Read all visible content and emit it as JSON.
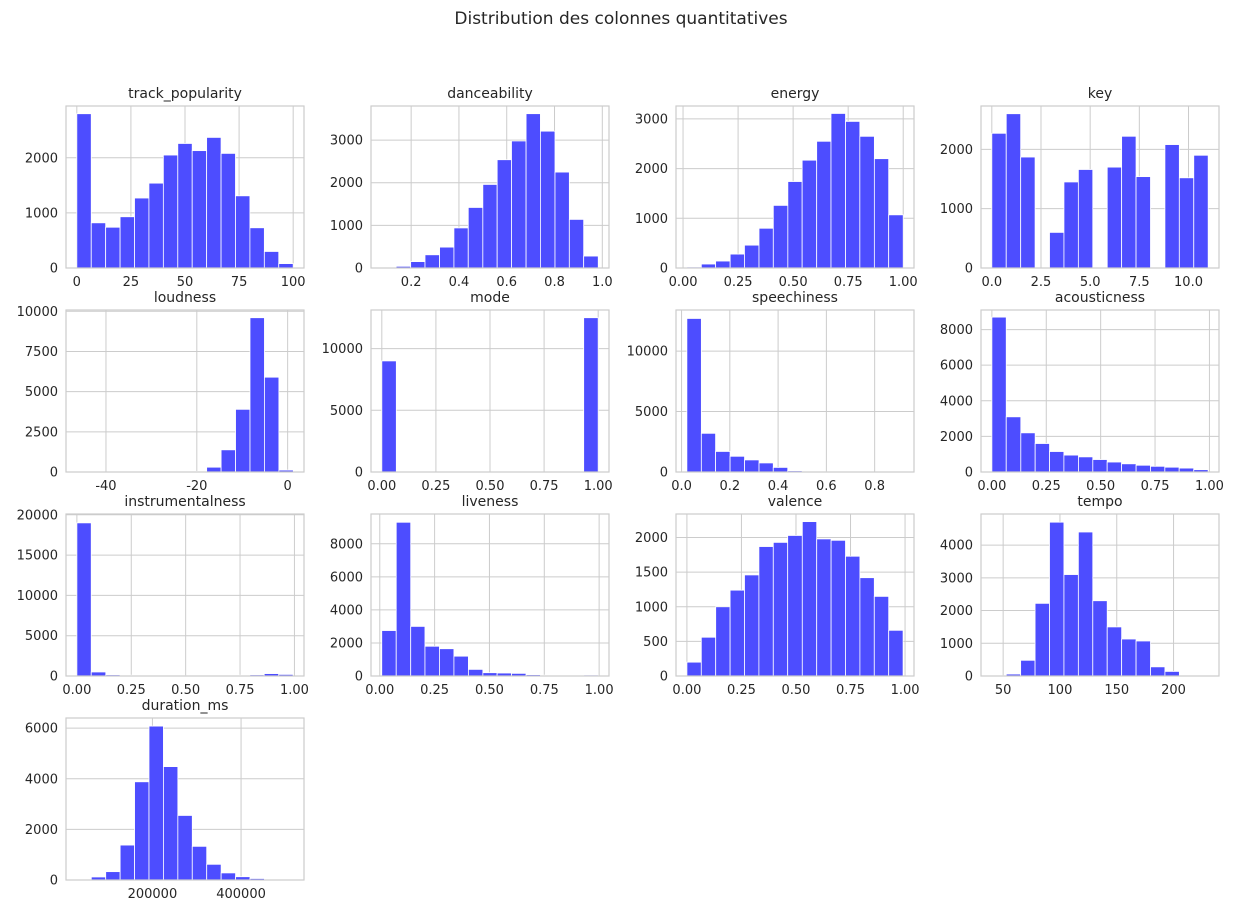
{
  "title": "Distribution des colonnes quantitatives",
  "chart_data": [
    {
      "type": "histogram",
      "title": "track_popularity",
      "color": "#4d4dff",
      "grid": true,
      "bins": [
        0,
        6.67,
        13.33,
        20,
        26.67,
        33.33,
        40,
        46.67,
        53.33,
        60,
        66.67,
        73.33,
        80,
        86.67,
        93.33,
        100
      ],
      "values": [
        2800,
        820,
        740,
        930,
        1270,
        1540,
        2050,
        2260,
        2130,
        2370,
        2080,
        1310,
        730,
        300,
        80
      ],
      "xlim": [
        -5,
        105
      ],
      "xticks": [
        0,
        25,
        50,
        75,
        100
      ],
      "ylim": [
        0,
        2940
      ],
      "yticks": [
        0,
        1000,
        2000
      ]
    },
    {
      "type": "histogram",
      "title": "danceability",
      "color": "#4d4dff",
      "grid": true,
      "bins": [
        0.077,
        0.137,
        0.198,
        0.258,
        0.319,
        0.379,
        0.439,
        0.5,
        0.56,
        0.62,
        0.681,
        0.741,
        0.802,
        0.862,
        0.922,
        0.983
      ],
      "values": [
        10,
        40,
        150,
        310,
        490,
        940,
        1420,
        1960,
        2540,
        2980,
        3620,
        3210,
        2250,
        1140,
        280
      ],
      "xlim": [
        0.032,
        1.028
      ],
      "xticks": [
        0.2,
        0.4,
        0.6,
        0.8,
        {
          "value": 1,
          "label": "1.0"
        }
      ],
      "ylim": [
        0,
        3800
      ],
      "yticks": [
        0,
        1000,
        2000,
        3000
      ]
    },
    {
      "type": "histogram",
      "title": "energy",
      "color": "#4d4dff",
      "grid": true,
      "bins": [
        0.017,
        0.083,
        0.148,
        0.214,
        0.279,
        0.345,
        0.41,
        0.476,
        0.541,
        0.607,
        0.672,
        0.738,
        0.803,
        0.869,
        0.934,
        1.0
      ],
      "values": [
        20,
        80,
        140,
        280,
        460,
        800,
        1260,
        1740,
        2170,
        2550,
        3110,
        2950,
        2650,
        2200,
        1070
      ],
      "xlim": [
        -0.032,
        1.049
      ],
      "xticks": [
        {
          "value": 0,
          "label": "0.00"
        },
        0.25,
        {
          "value": 0.5,
          "label": "0.50"
        },
        0.75,
        {
          "value": 1,
          "label": "1.00"
        }
      ],
      "ylim": [
        0,
        3260
      ],
      "yticks": [
        0,
        1000,
        2000,
        3000
      ]
    },
    {
      "type": "histogram",
      "title": "key",
      "color": "#4d4dff",
      "grid": true,
      "bins": [
        0,
        0.733,
        1.467,
        2.2,
        2.933,
        3.667,
        4.4,
        5.133,
        5.867,
        6.6,
        7.333,
        8.067,
        8.8,
        9.533,
        10.267,
        11
      ],
      "values": [
        2270,
        2600,
        1870,
        0,
        600,
        1450,
        1660,
        0,
        1700,
        2220,
        1540,
        0,
        2080,
        1520,
        1900
      ],
      "xlim": [
        -0.55,
        11.55
      ],
      "xticks": [
        {
          "value": 0,
          "label": "0.0"
        },
        2.5,
        {
          "value": 5,
          "label": "5.0"
        },
        7.5,
        {
          "value": 10,
          "label": "10.0"
        }
      ],
      "ylim": [
        0,
        2730
      ],
      "yticks": [
        0,
        1000,
        2000
      ]
    },
    {
      "type": "histogram",
      "title": "loudness",
      "color": "#4d4dff",
      "grid": true,
      "bins": [
        -46.45,
        -43.27,
        -40.09,
        -36.91,
        -33.73,
        -30.55,
        -27.37,
        -24.19,
        -21.01,
        -17.83,
        -14.65,
        -11.47,
        -8.29,
        -5.11,
        -1.93,
        1.25
      ],
      "values": [
        2,
        0,
        1,
        2,
        3,
        5,
        8,
        15,
        40,
        300,
        1380,
        3900,
        9600,
        5900,
        120
      ],
      "xlim": [
        -48.8,
        3.6
      ],
      "xticks": [
        -40,
        -20,
        0
      ],
      "ylim": [
        0,
        10080
      ],
      "yticks": [
        0,
        2500,
        5000,
        7500,
        10000
      ]
    },
    {
      "type": "histogram",
      "title": "mode",
      "color": "#4d4dff",
      "grid": true,
      "bins": [
        0,
        0.067,
        0.133,
        0.2,
        0.267,
        0.333,
        0.4,
        0.467,
        0.533,
        0.6,
        0.667,
        0.733,
        0.8,
        0.867,
        0.933,
        1
      ],
      "values": [
        9000,
        0,
        0,
        0,
        0,
        0,
        0,
        0,
        0,
        0,
        0,
        0,
        0,
        0,
        12500
      ],
      "xlim": [
        -0.05,
        1.05
      ],
      "xticks": [
        {
          "value": 0,
          "label": "0.00"
        },
        0.25,
        {
          "value": 0.5,
          "label": "0.50"
        },
        0.75,
        {
          "value": 1,
          "label": "1.00"
        }
      ],
      "ylim": [
        0,
        13125
      ],
      "yticks": [
        0,
        5000,
        10000
      ]
    },
    {
      "type": "histogram",
      "title": "speechiness",
      "color": "#4d4dff",
      "grid": true,
      "bins": [
        0.022,
        0.082,
        0.141,
        0.201,
        0.261,
        0.321,
        0.38,
        0.44,
        0.5,
        0.56,
        0.619,
        0.679,
        0.739,
        0.799,
        0.858,
        0.918
      ],
      "values": [
        12700,
        3200,
        1700,
        1300,
        1000,
        750,
        380,
        100,
        40,
        20,
        10,
        5,
        3,
        2,
        1
      ],
      "xlim": [
        -0.023,
        0.963
      ],
      "xticks": [
        {
          "value": 0,
          "label": "0.0"
        },
        0.2,
        0.4,
        0.6,
        0.8
      ],
      "ylim": [
        0,
        13400
      ],
      "yticks": [
        0,
        5000,
        10000
      ]
    },
    {
      "type": "histogram",
      "title": "acousticness",
      "color": "#4d4dff",
      "grid": true,
      "bins": [
        0,
        0.066,
        0.133,
        0.199,
        0.265,
        0.331,
        0.398,
        0.464,
        0.53,
        0.596,
        0.663,
        0.729,
        0.795,
        0.861,
        0.928,
        0.994
      ],
      "values": [
        8700,
        3100,
        2200,
        1600,
        1150,
        950,
        850,
        700,
        560,
        460,
        380,
        320,
        270,
        220,
        130
      ],
      "xlim": [
        -0.05,
        1.044
      ],
      "xticks": [
        {
          "value": 0,
          "label": "0.00"
        },
        0.25,
        {
          "value": 0.5,
          "label": "0.50"
        },
        0.75,
        {
          "value": 1,
          "label": "1.00"
        }
      ],
      "ylim": [
        0,
        9100
      ],
      "yticks": [
        0,
        2000,
        4000,
        6000,
        8000
      ]
    },
    {
      "type": "histogram",
      "title": "instrumentalness",
      "color": "#4d4dff",
      "grid": true,
      "bins": [
        0,
        0.066,
        0.133,
        0.199,
        0.265,
        0.331,
        0.398,
        0.464,
        0.53,
        0.596,
        0.663,
        0.729,
        0.795,
        0.861,
        0.928,
        0.994
      ],
      "values": [
        19000,
        500,
        150,
        100,
        60,
        50,
        40,
        40,
        40,
        50,
        60,
        100,
        150,
        300,
        200
      ],
      "xlim": [
        -0.05,
        1.044
      ],
      "xticks": [
        {
          "value": 0,
          "label": "0.00"
        },
        0.25,
        {
          "value": 0.5,
          "label": "0.50"
        },
        0.75,
        {
          "value": 1,
          "label": "1.00"
        }
      ],
      "ylim": [
        0,
        20100
      ],
      "yticks": [
        0,
        5000,
        10000,
        15000,
        20000
      ]
    },
    {
      "type": "histogram",
      "title": "liveness",
      "color": "#4d4dff",
      "grid": true,
      "bins": [
        0.009,
        0.075,
        0.141,
        0.206,
        0.272,
        0.338,
        0.404,
        0.47,
        0.535,
        0.601,
        0.667,
        0.733,
        0.799,
        0.864,
        0.93,
        0.996
      ],
      "values": [
        2750,
        9300,
        3000,
        1800,
        1650,
        1200,
        400,
        200,
        180,
        160,
        80,
        50,
        30,
        30,
        60
      ],
      "xlim": [
        -0.04,
        1.045
      ],
      "xticks": [
        {
          "value": 0,
          "label": "0.00"
        },
        0.25,
        {
          "value": 0.5,
          "label": "0.50"
        },
        0.75,
        {
          "value": 1,
          "label": "1.00"
        }
      ],
      "ylim": [
        0,
        9800
      ],
      "yticks": [
        0,
        2000,
        4000,
        6000,
        8000
      ]
    },
    {
      "type": "histogram",
      "title": "valence",
      "color": "#4d4dff",
      "grid": true,
      "bins": [
        0,
        0.066,
        0.132,
        0.198,
        0.264,
        0.33,
        0.396,
        0.462,
        0.529,
        0.595,
        0.661,
        0.727,
        0.793,
        0.859,
        0.925,
        0.991
      ],
      "values": [
        200,
        560,
        1000,
        1240,
        1460,
        1870,
        1930,
        2030,
        2230,
        1980,
        1960,
        1730,
        1420,
        1150,
        660
      ],
      "xlim": [
        -0.05,
        1.041
      ],
      "xticks": [
        {
          "value": 0,
          "label": "0.00"
        },
        0.25,
        {
          "value": 0.5,
          "label": "0.50"
        },
        0.75,
        {
          "value": 1,
          "label": "1.00"
        }
      ],
      "ylim": [
        0,
        2340
      ],
      "yticks": [
        0,
        500,
        1000,
        1500,
        2000
      ]
    },
    {
      "type": "histogram",
      "title": "tempo",
      "color": "#4d4dff",
      "grid": true,
      "bins": [
        40,
        52.7,
        65.4,
        78.1,
        90.8,
        103.5,
        116.2,
        128.9,
        141.6,
        154.3,
        167,
        179.7,
        192.4,
        205.1,
        217.8,
        230.5
      ],
      "values": [
        10,
        60,
        480,
        2220,
        4700,
        3100,
        4400,
        2300,
        1500,
        1130,
        1070,
        280,
        140,
        10,
        5
      ],
      "xlim": [
        30.5,
        240
      ],
      "xticks": [
        50,
        100,
        150,
        200
      ],
      "ylim": [
        0,
        4950
      ],
      "yticks": [
        0,
        1000,
        2000,
        3000,
        4000
      ]
    },
    {
      "type": "histogram",
      "title": "duration_ms",
      "color": "#4d4dff",
      "grid": true,
      "bins": [
        29493,
        62047,
        94601,
        127155,
        159709,
        192263,
        224817,
        257371,
        289925,
        322479,
        355033,
        387587,
        420141,
        452695,
        485249,
        517803
      ],
      "values": [
        20,
        120,
        330,
        1380,
        3880,
        6080,
        4480,
        2550,
        1330,
        620,
        280,
        130,
        60,
        20,
        10
      ],
      "xlim": [
        5000,
        542000
      ],
      "xticks": [
        200000,
        400000
      ],
      "ylim": [
        0,
        6400
      ],
      "yticks": [
        0,
        2000,
        4000,
        6000
      ]
    }
  ]
}
